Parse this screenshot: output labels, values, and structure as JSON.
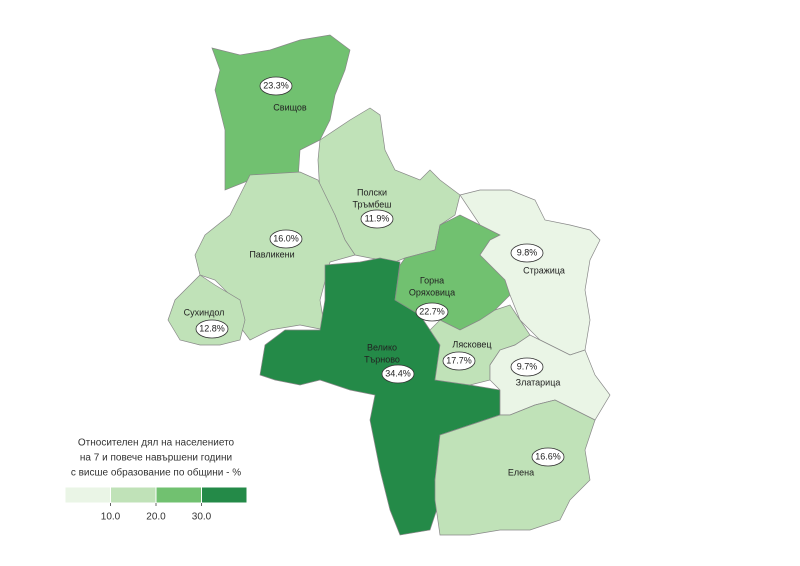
{
  "map": {
    "regions": [
      {
        "name": [
          "Свищов"
        ],
        "value": 23.3,
        "value_label": "23.3%"
      },
      {
        "name": [
          "Полски",
          "Тръмбеш"
        ],
        "value": 11.9,
        "value_label": "11.9%"
      },
      {
        "name": [
          "Павликени"
        ],
        "value": 16.0,
        "value_label": "16.0%"
      },
      {
        "name": [
          "Сухиндол"
        ],
        "value": 12.8,
        "value_label": "12.8%"
      },
      {
        "name": [
          "Велико",
          "Търново"
        ],
        "value": 34.4,
        "value_label": "34.4%"
      },
      {
        "name": [
          "Горна",
          "Оряховица"
        ],
        "value": 22.7,
        "value_label": "22.7%"
      },
      {
        "name": [
          "Стражица"
        ],
        "value": 9.8,
        "value_label": "9.8%"
      },
      {
        "name": [
          "Лясковец"
        ],
        "value": 17.7,
        "value_label": "17.7%"
      },
      {
        "name": [
          "Златарица"
        ],
        "value": 9.7,
        "value_label": "9.7%"
      },
      {
        "name": [
          "Елена"
        ],
        "value": 16.6,
        "value_label": "16.6%"
      }
    ],
    "legend": {
      "title": [
        "Относителен дял на населението",
        "на 7 и повече навършени години",
        "с висше образование по общини - %"
      ],
      "colors": [
        "#eaf5e6",
        "#c0e2b8",
        "#71c170",
        "#248a48"
      ],
      "ticks": [
        {
          "value": 10,
          "label": "10.0"
        },
        {
          "value": 20,
          "label": "20.0"
        },
        {
          "value": 30,
          "label": "30.0"
        }
      ]
    }
  }
}
